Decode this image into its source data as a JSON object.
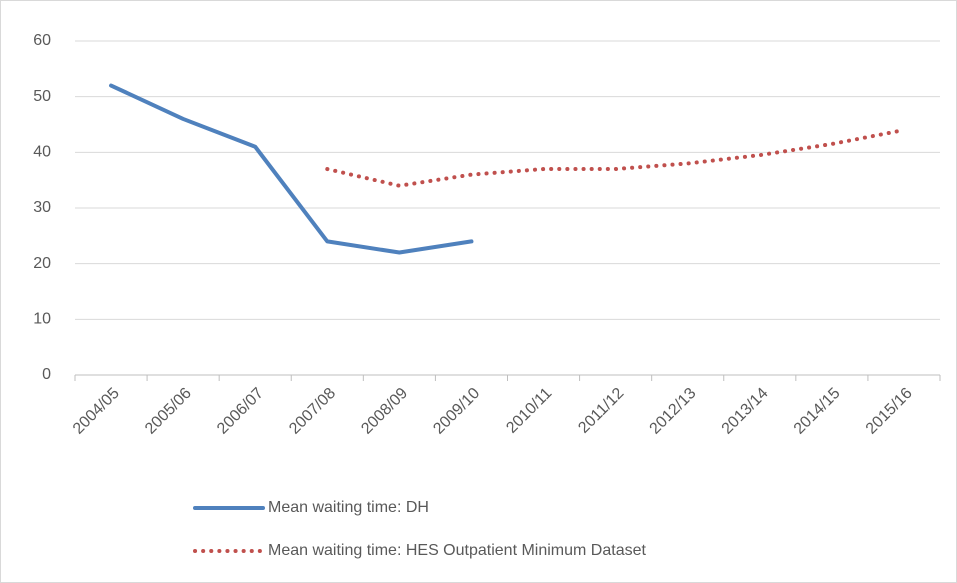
{
  "chart_data": {
    "type": "line",
    "categories": [
      "2004/05",
      "2005/06",
      "2006/07",
      "2007/08",
      "2008/09",
      "2009/10",
      "2010/11",
      "2011/12",
      "2012/13",
      "2013/14",
      "2014/15",
      "2015/16"
    ],
    "series": [
      {
        "name": "Mean waiting time: DH",
        "color": "#4f81bd",
        "style": "solid",
        "values": [
          52,
          46,
          41,
          24,
          22,
          24,
          null,
          null,
          null,
          null,
          null,
          null
        ]
      },
      {
        "name": "Mean waiting time: HES Outpatient Minimum Dataset",
        "color": "#c0504d",
        "style": "dotted",
        "values": [
          null,
          null,
          null,
          37,
          34,
          36,
          37,
          37,
          38,
          39.5,
          41.5,
          44
        ]
      }
    ],
    "ylim": [
      0,
      60
    ],
    "yticks": [
      0,
      10,
      20,
      30,
      40,
      50,
      60
    ],
    "grid": true,
    "legend": "bottom"
  }
}
